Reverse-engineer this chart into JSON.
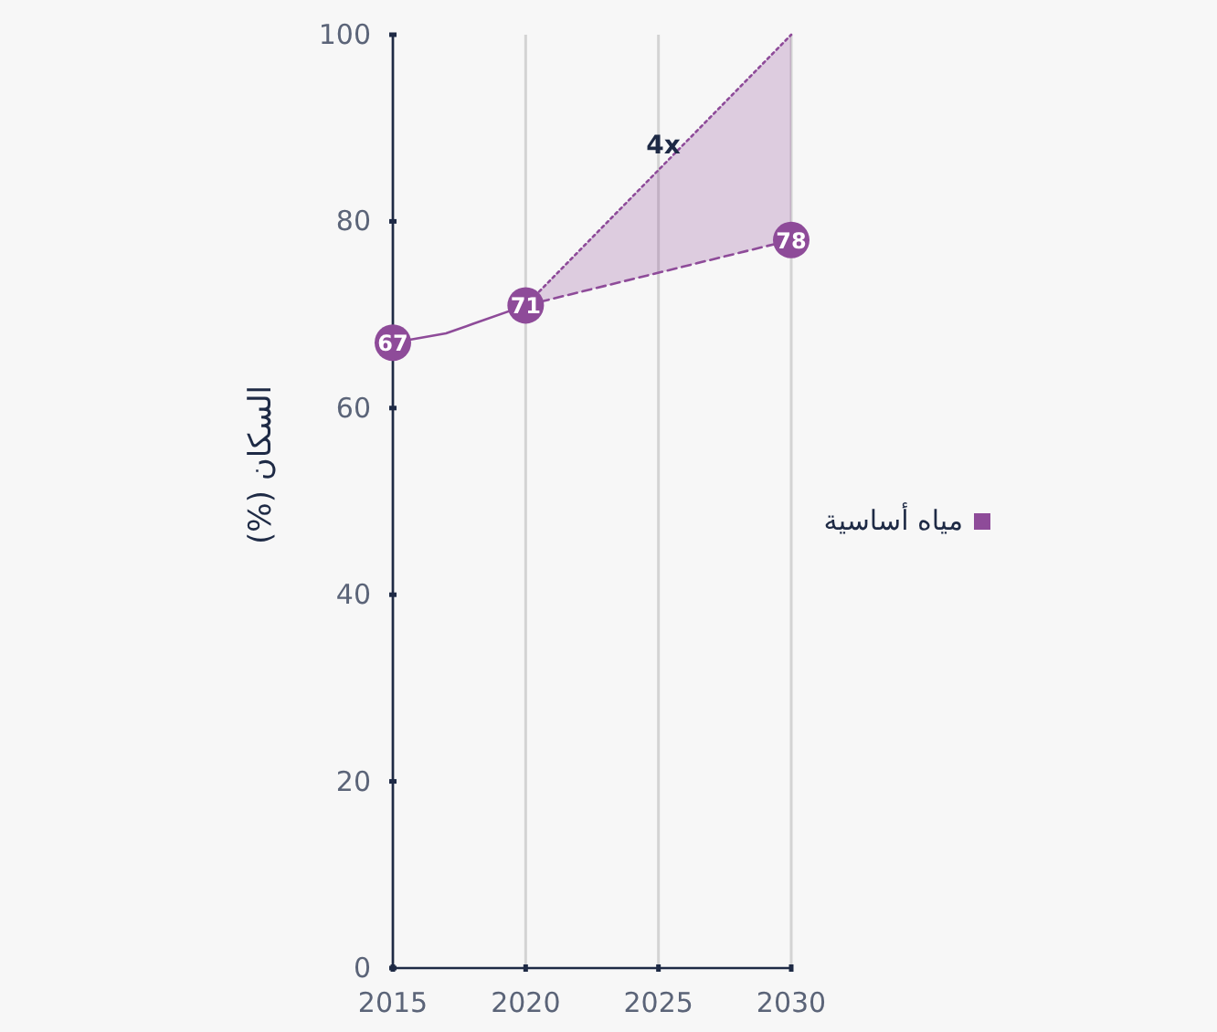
{
  "chart_data": {
    "type": "line",
    "ylabel": "السكان (%)",
    "xlim": [
      2015,
      2030
    ],
    "xticks": [
      2015,
      2020,
      2025,
      2030
    ],
    "ylim": [
      0,
      100
    ],
    "yticks": [
      0,
      20,
      40,
      60,
      80,
      100
    ],
    "grid": "x",
    "legend": "right",
    "series": [
      {
        "name": "مياه أساسية",
        "color": "#8e4b99",
        "x": [
          2015,
          2017,
          2018,
          2020
        ],
        "values": [
          67,
          68,
          69,
          71
        ],
        "value_labels": [
          "67",
          null,
          null,
          "71"
        ],
        "line_style": "solid"
      },
      {
        "color": "#8e4b99",
        "x": [
          2020,
          2030
        ],
        "values": [
          71,
          78
        ],
        "lower": [
          71,
          78
        ],
        "upper": [
          71,
          100
        ],
        "value_labels": [
          null,
          "78"
        ],
        "line_style": "dashed"
      },
      {
        "color": "#8e4b99",
        "x": [
          2020,
          2030
        ],
        "values": [
          71,
          100
        ],
        "line_style": "dotted"
      }
    ],
    "annotations": [
      "4x"
    ]
  }
}
